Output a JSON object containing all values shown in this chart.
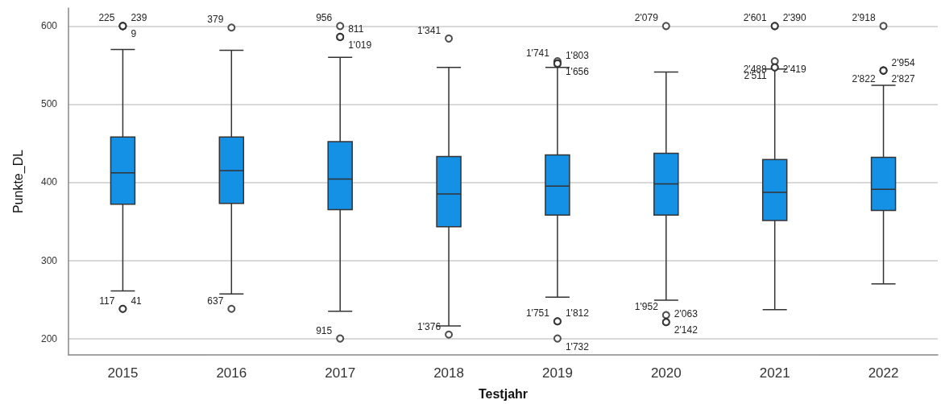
{
  "chart_data": {
    "type": "box",
    "xlabel": "Testjahr",
    "ylabel": "Punkte_DL",
    "categories": [
      "2015",
      "2016",
      "2017",
      "2018",
      "2019",
      "2020",
      "2021",
      "2022"
    ],
    "color": "#1490e4",
    "boxes": [
      {
        "low": 261,
        "q1": 372,
        "median": 412,
        "q3": 458,
        "high": 570,
        "outliers": [
          600,
          600,
          600,
          238,
          238
        ]
      },
      {
        "low": 257,
        "q1": 373,
        "median": 415,
        "q3": 458,
        "high": 569,
        "outliers": [
          598,
          238
        ]
      },
      {
        "low": 235,
        "q1": 365,
        "median": 404,
        "q3": 452,
        "high": 560,
        "outliers": [
          600,
          586,
          586,
          200
        ]
      },
      {
        "low": 216,
        "q1": 343,
        "median": 385,
        "q3": 433,
        "high": 547,
        "outliers": [
          584,
          205
        ]
      },
      {
        "low": 253,
        "q1": 358,
        "median": 395,
        "q3": 435,
        "high": 547,
        "outliers": [
          555,
          552,
          552,
          222,
          222,
          200
        ]
      },
      {
        "low": 249,
        "q1": 358,
        "median": 398,
        "q3": 437,
        "high": 541,
        "outliers": [
          600,
          230,
          221,
          221
        ]
      },
      {
        "low": 237,
        "q1": 351,
        "median": 387,
        "q3": 429,
        "high": 545,
        "outliers": [
          600,
          600,
          555,
          547,
          547
        ]
      },
      {
        "low": 270,
        "q1": 364,
        "median": 391,
        "q3": 432,
        "high": 524,
        "outliers": [
          600,
          543,
          543,
          543
        ]
      }
    ],
    "ylim": [
      179,
      623
    ],
    "yticks": [
      200,
      300,
      400,
      500,
      600
    ],
    "grid": "y",
    "annotations": [
      "225",
      "239",
      "9",
      "117",
      "41",
      "379",
      "637",
      "956",
      "811",
      "1'019",
      "915",
      "1'341",
      "1'376",
      "1'741",
      "1'803",
      "1'656",
      "1'751",
      "1'812",
      "1'732",
      "2'079",
      "1'952",
      "2'063",
      "2'142",
      "2'601",
      "2'390",
      "2'419",
      "2'511",
      "2'488",
      "2'918",
      "2'954",
      "2'827",
      "2'822"
    ]
  }
}
